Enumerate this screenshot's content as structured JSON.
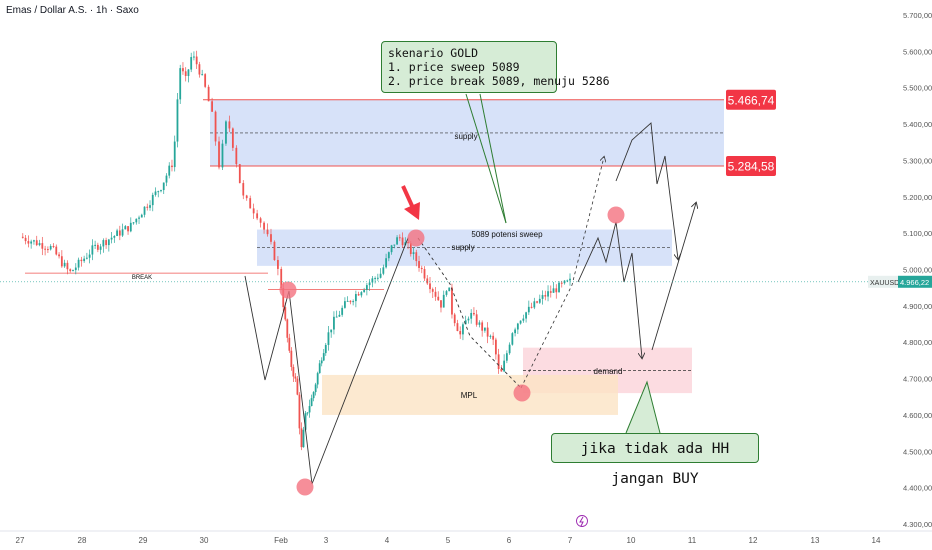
{
  "title": "Emas / Dollar A.S. · 1h · Saxo",
  "colors": {
    "up": "#26a69a",
    "down": "#ef5350",
    "supply_fill": "#c9d8f7",
    "demand_fill": "#fbd3d9",
    "mpl_fill": "#fbe3c4",
    "price_line": "#ef5350",
    "callout_fill": "#d6ecd6",
    "callout_border": "#2e7d32"
  },
  "chart_data": {
    "type": "candlestick",
    "symbol": "XAUUSD",
    "y_axis": {
      "ticks": [
        "5.700,00",
        "5.600,00",
        "5.500,00",
        "5.400,00",
        "5.300,00",
        "5.200,00",
        "5.100,00",
        "5.000,00",
        "4.900,00",
        "4.800,00",
        "4.700,00",
        "4.600,00",
        "4.500,00",
        "4.400,00",
        "4.300,00"
      ],
      "tick_values": [
        5700,
        5600,
        5500,
        5400,
        5300,
        5200,
        5100,
        5000,
        4900,
        4800,
        4700,
        4600,
        4500,
        4400,
        4300
      ],
      "range": [
        4300,
        5720
      ]
    },
    "x_axis": {
      "ticks": [
        "27",
        "28",
        "29",
        "30",
        "Feb",
        "3",
        "4",
        "5",
        "6",
        "7",
        "10",
        "11",
        "12",
        "13",
        "14"
      ]
    },
    "last_price": {
      "symbol": "XAUUSD",
      "value": 4966.22,
      "label": "4.966,22"
    },
    "price_path": [
      [
        0,
        5090
      ],
      [
        0.5,
        5060
      ],
      [
        0.8,
        4990
      ],
      [
        1.2,
        5060
      ],
      [
        1.8,
        5120
      ],
      [
        2.3,
        5230
      ],
      [
        2.5,
        5300
      ],
      [
        2.6,
        5560
      ],
      [
        2.7,
        5520
      ],
      [
        2.8,
        5590
      ],
      [
        2.9,
        5560
      ],
      [
        3,
        5510
      ],
      [
        3.1,
        5430
      ],
      [
        3.2,
        5280
      ],
      [
        3.3,
        5420
      ],
      [
        3.4,
        5320
      ],
      [
        3.5,
        5200
      ],
      [
        3.7,
        5150
      ],
      [
        3.9,
        5050
      ],
      [
        4,
        4960
      ],
      [
        4.1,
        4850
      ],
      [
        4.2,
        4750
      ],
      [
        4.35,
        4680
      ],
      [
        4.45,
        4500
      ],
      [
        4.55,
        4600
      ],
      [
        4.7,
        4650
      ],
      [
        4.9,
        4760
      ],
      [
        5.1,
        4850
      ],
      [
        5.3,
        4900
      ],
      [
        5.6,
        4950
      ],
      [
        5.9,
        4990
      ],
      [
        6.1,
        5070
      ],
      [
        6.2,
        5090
      ],
      [
        6.35,
        5060
      ],
      [
        6.5,
        5020
      ],
      [
        6.7,
        4960
      ],
      [
        6.9,
        4900
      ],
      [
        7,
        4970
      ],
      [
        7.05,
        4890
      ],
      [
        7.2,
        4820
      ],
      [
        7.35,
        4880
      ],
      [
        7.55,
        4840
      ],
      [
        7.75,
        4800
      ],
      [
        7.85,
        4700
      ],
      [
        7.95,
        4760
      ],
      [
        8.05,
        4830
      ],
      [
        8.2,
        4870
      ],
      [
        8.4,
        4900
      ],
      [
        8.6,
        4930
      ],
      [
        8.8,
        4950
      ],
      [
        9.0,
        4966
      ]
    ],
    "zones": [
      {
        "name": "supply",
        "label": "supply",
        "y": [
          5284.58,
          5466.74
        ]
      },
      {
        "name": "supply-lower",
        "label": "supply",
        "y": [
          5010,
          5110
        ],
        "note": "5089 potensi sweep"
      },
      {
        "name": "demand",
        "label": "demand",
        "y": [
          4660,
          4785
        ]
      },
      {
        "name": "mpl",
        "label": "MPL",
        "y": [
          4600,
          4710
        ]
      }
    ],
    "levels": [
      {
        "label": "5.466,74",
        "value": 5466.74
      },
      {
        "label": "5.284,58",
        "value": 5284.58
      },
      {
        "label": "BREAK",
        "value": 4990
      }
    ],
    "annotations": [
      "skenario GOLD",
      "1. price sweep 5089",
      "2. price break 5089, menuju 5286",
      "5089 potensi sweep",
      "jika tidak ada HH jangan BUY"
    ]
  },
  "annotation_text": {
    "callout_title": "skenario GOLD",
    "callout_line1": "1. price sweep 5089",
    "callout_line2": "2. price break 5089, menuju 5286",
    "callout_bottom": "jika tidak ada HH jangan BUY",
    "sweep_note": "5089 potensi sweep",
    "break_label": "BREAK",
    "supply_upper": "supply",
    "supply_lower": "supply",
    "demand": "demand",
    "mpl": "MPL",
    "level_high": "5.466,74",
    "level_mid": "5.284,58"
  },
  "icons": {
    "flash": "lightning-icon"
  }
}
